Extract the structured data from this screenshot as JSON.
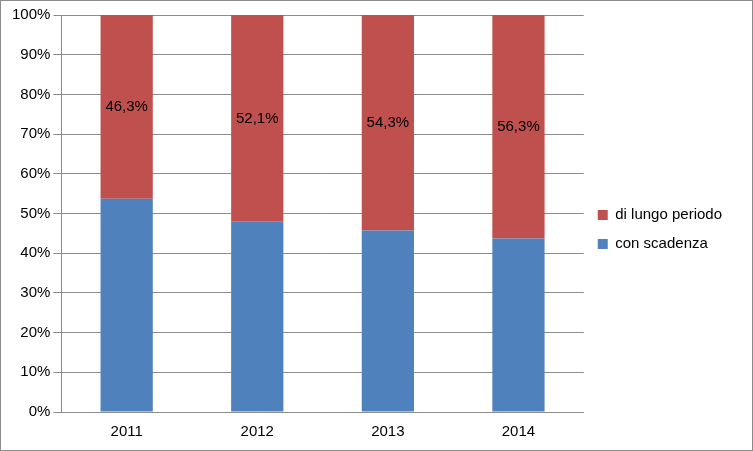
{
  "chart_data": {
    "type": "bar",
    "stacked": true,
    "grid": true,
    "legend": "right",
    "categories": [
      "2011",
      "2012",
      "2013",
      "2014"
    ],
    "ylim": [
      0,
      100
    ],
    "yticks": [
      {
        "value": 0,
        "label": "0%"
      },
      {
        "value": 10,
        "label": "10%"
      },
      {
        "value": 20,
        "label": "20%"
      },
      {
        "value": 30,
        "label": "30%"
      },
      {
        "value": 40,
        "label": "40%"
      },
      {
        "value": 50,
        "label": "50%"
      },
      {
        "value": 60,
        "label": "60%"
      },
      {
        "value": 70,
        "label": "70%"
      },
      {
        "value": 80,
        "label": "80%"
      },
      {
        "value": 90,
        "label": "90%"
      },
      {
        "value": 100,
        "label": "100%"
      }
    ],
    "series": [
      {
        "name": "con scadenza",
        "color": "#4f81bd",
        "values": [
          53.7,
          47.9,
          45.7,
          43.7
        ]
      },
      {
        "name": "di lungo periodo",
        "color": "#c0504d",
        "values": [
          46.3,
          52.1,
          54.3,
          56.3
        ],
        "data_labels": true,
        "value_labels": [
          "46,3%",
          "52,1%",
          "54,3%",
          "56,3%"
        ]
      }
    ]
  }
}
